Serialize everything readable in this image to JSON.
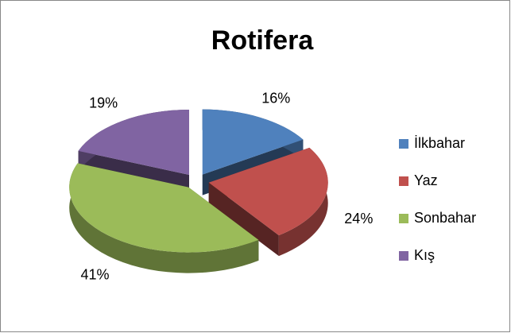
{
  "chart_data": {
    "type": "pie",
    "title": "Rotifera",
    "categories": [
      "İlkbahar",
      "Yaz",
      "Sonbahar",
      "Kış"
    ],
    "values": [
      16,
      24,
      41,
      19
    ],
    "value_labels": [
      "16%",
      "24%",
      "41%",
      "19%"
    ],
    "colors": [
      "#4f81bd",
      "#c0504d",
      "#9bbb59",
      "#8064a2"
    ],
    "legend": "right"
  }
}
